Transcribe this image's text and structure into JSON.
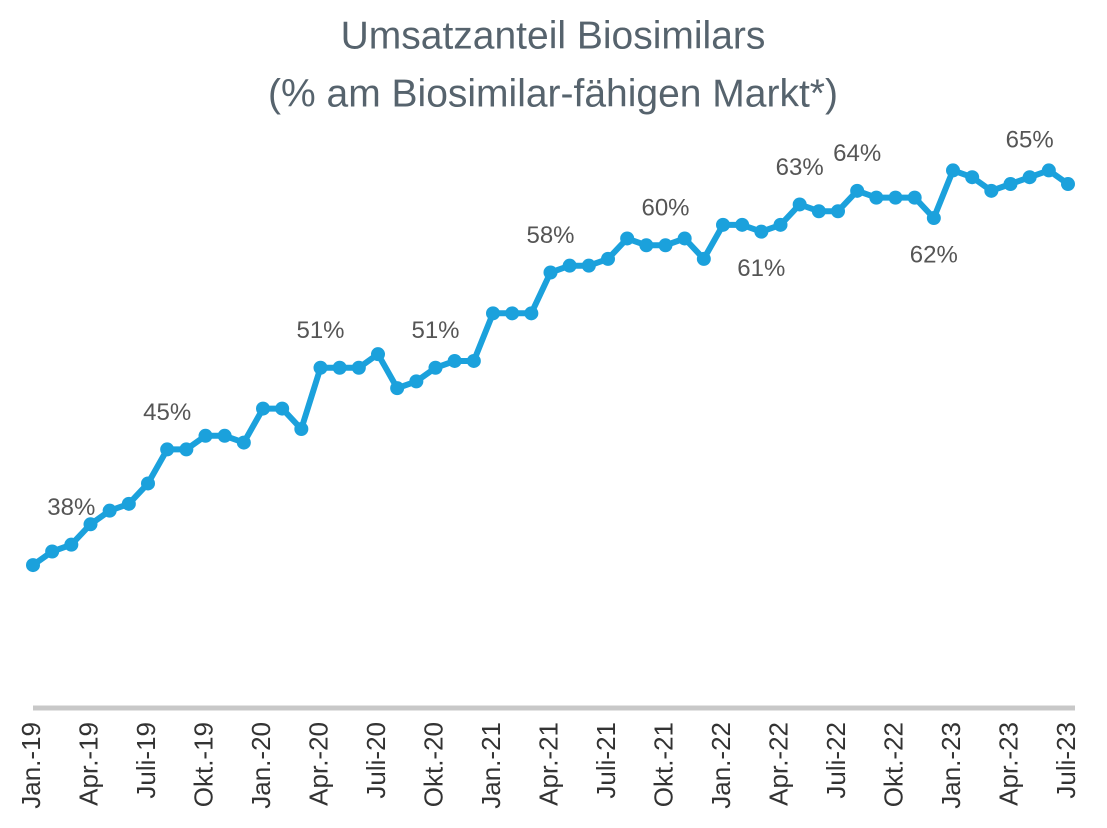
{
  "chart_data": {
    "type": "line",
    "title": "Umsatzanteil Biosimilars",
    "subtitle": "(% am Biosimilar-fähigen Markt*)",
    "categories": [
      "Jan.-19",
      null,
      null,
      "Apr.-19",
      null,
      null,
      "Juli-19",
      null,
      null,
      "Okt.-19",
      null,
      null,
      "Jan.-20",
      null,
      null,
      "Apr.-20",
      null,
      null,
      "Juli-20",
      null,
      null,
      "Okt.-20",
      null,
      null,
      "Jan.-21",
      null,
      null,
      "Apr.-21",
      null,
      null,
      "Juli-21",
      null,
      null,
      "Okt.-21",
      null,
      null,
      "Jan.-22",
      null,
      null,
      "Apr.-22",
      null,
      null,
      "Juli-22",
      null,
      null,
      "Okt.-22",
      null,
      null,
      "Jan.-23",
      null,
      null,
      "Apr.-23",
      null,
      null,
      "Juli-23"
    ],
    "values": [
      36.5,
      37.5,
      38,
      39.5,
      40.5,
      41,
      42.5,
      45,
      45,
      46,
      46,
      45.5,
      48,
      48,
      46.5,
      51,
      51,
      51,
      52,
      49.5,
      50,
      51,
      51.5,
      51.5,
      55,
      55,
      55,
      58,
      58.5,
      58.5,
      59,
      60.5,
      60,
      60,
      60.5,
      59,
      61.5,
      61.5,
      61,
      61.5,
      63,
      62.5,
      62.5,
      64,
      63.5,
      63.5,
      63.5,
      62,
      65.5,
      65,
      64,
      64.5,
      65,
      65.5,
      64.5
    ],
    "value_labels": [
      null,
      null,
      "38%",
      null,
      null,
      null,
      null,
      "45%",
      null,
      null,
      null,
      null,
      null,
      null,
      null,
      "51%",
      null,
      null,
      null,
      null,
      null,
      "51%",
      null,
      null,
      null,
      null,
      null,
      "58%",
      null,
      null,
      null,
      null,
      null,
      "60%",
      null,
      null,
      null,
      null,
      "61%",
      null,
      "63%",
      null,
      null,
      "64%",
      null,
      null,
      null,
      "62%",
      null,
      null,
      null,
      null,
      "65%",
      null,
      null
    ],
    "color": "#1ba1dc",
    "ylim": [
      26,
      67
    ]
  }
}
